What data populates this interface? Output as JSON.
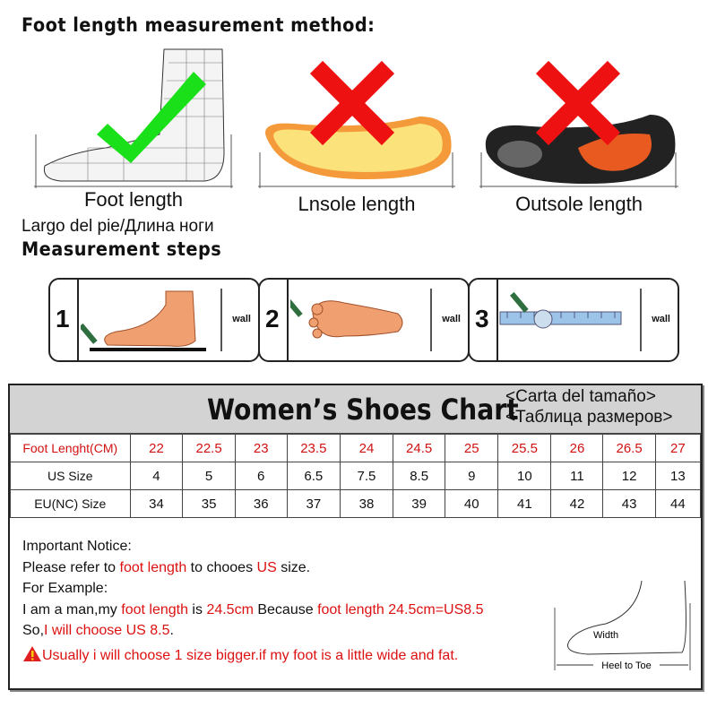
{
  "top": {
    "title": "Foot length measurement method:",
    "methods": [
      {
        "label": "Foot length",
        "status": "correct"
      },
      {
        "label": "Lnsole length",
        "status": "wrong"
      },
      {
        "label": "Outsole length",
        "status": "wrong"
      }
    ],
    "foot_length_translation": "Largo del pie/Длина ноги",
    "steps_title": "Measurement steps",
    "steps": [
      {
        "num": "1",
        "wall": "wall"
      },
      {
        "num": "2",
        "wall": "wall"
      },
      {
        "num": "3",
        "wall": "wall"
      }
    ]
  },
  "chart": {
    "title": "Women’s Shoes Chart",
    "subtitle_es": "<Carta del tamaño>",
    "subtitle_ru": "<Таблица размеров>",
    "rows": [
      {
        "label": "Foot Lenght(CM)",
        "values": [
          "22",
          "22.5",
          "23",
          "23.5",
          "24",
          "24.5",
          "25",
          "25.5",
          "26",
          "26.5",
          "27"
        ],
        "color": "#d11111"
      },
      {
        "label": "US Size",
        "values": [
          "4",
          "5",
          "6",
          "6.5",
          "7.5",
          "8.5",
          "9",
          "10",
          "11",
          "12",
          "13"
        ]
      },
      {
        "label": "EU(NC) Size",
        "values": [
          "34",
          "35",
          "36",
          "37",
          "38",
          "39",
          "40",
          "41",
          "42",
          "43",
          "44"
        ]
      }
    ]
  },
  "notice": {
    "heading": "Important Notice:",
    "line1": [
      "Please refer to ",
      "foot length",
      " to chooes ",
      "US",
      " size."
    ],
    "example": "For Example:",
    "line2": [
      "I am a man,my ",
      "foot length",
      " is ",
      "24.5cm",
      " Because ",
      "foot length 24.5cm=US8.5"
    ],
    "line3": [
      "So,",
      "I will choose US 8.5",
      "."
    ],
    "warning": "Usually i will choose 1 size bigger.if my foot is a little wide and fat.",
    "diagram_width": "Width",
    "diagram_heel": "Heel to Toe"
  }
}
